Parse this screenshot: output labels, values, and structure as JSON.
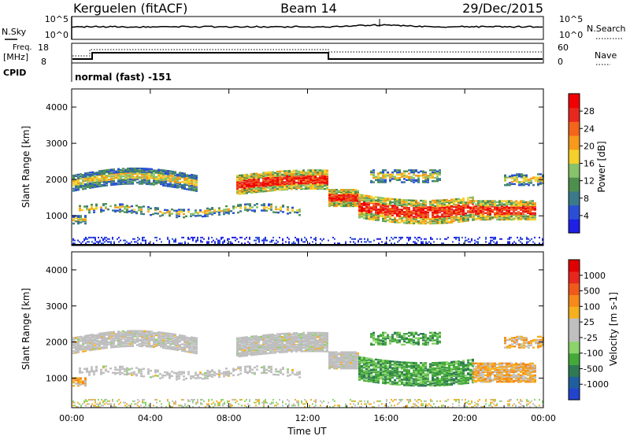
{
  "header": {
    "station": "Kerguelen (fitACF)",
    "beam": "Beam 14",
    "date": "29/Dec/2015"
  },
  "top_panel": {
    "nsky_label": "N.Sky",
    "nsearch_label": "N.Search",
    "left_ticks": [
      "10^5",
      "10^0"
    ],
    "right_ticks": [
      "10^5",
      "10^0"
    ]
  },
  "freq_panel": {
    "freq_label_line1": "Freq.",
    "freq_label_line2": "[MHz]",
    "nave_label": "Nave",
    "left_ticks": [
      "18",
      "8"
    ],
    "right_ticks": [
      "60",
      "0"
    ],
    "cpid_label": "CPID",
    "mode_text": "normal (fast) -151"
  },
  "colors": {
    "power_scale": [
      "#1f1fe6",
      "#2a4fd6",
      "#3a7a8a",
      "#4e8f4e",
      "#88c26a",
      "#f5cf2a",
      "#f59a1a",
      "#f2651a",
      "#e8281e",
      "#f00000"
    ],
    "velocity_scale": [
      "#2244cc",
      "#1f5fa0",
      "#2f7a55",
      "#44a83a",
      "#8ad46a",
      "#bfbfbf",
      "#bfbfbf",
      "#f5b01e",
      "#f58a1a",
      "#ef5a1a",
      "#e8281e",
      "#e00000"
    ]
  },
  "chart_data": [
    {
      "type": "heatmap",
      "title": "",
      "ylabel": "Slant Range [km]",
      "xlabel": "",
      "ylim": [
        180,
        4500
      ],
      "yticks": [
        "1000",
        "2000",
        "3000",
        "4000"
      ],
      "xticks": [
        "00:00",
        "04:00",
        "08:00",
        "12:00",
        "16:00",
        "20:00",
        "00:00"
      ],
      "colorbar_label": "Power [dB]",
      "colorbar_ticks": [
        "4",
        "8",
        "12",
        "16",
        "20",
        "24",
        "28"
      ]
    },
    {
      "type": "heatmap",
      "title": "",
      "ylabel": "Slant Range [km]",
      "xlabel": "Time UT",
      "ylim": [
        180,
        4500
      ],
      "yticks": [
        "1000",
        "2000",
        "3000",
        "4000"
      ],
      "xticks": [
        "00:00",
        "04:00",
        "08:00",
        "12:00",
        "16:00",
        "20:00",
        "00:00"
      ],
      "colorbar_label": "Velocity [m s-1]",
      "colorbar_ticks": [
        "1000",
        "500",
        "100",
        "25",
        "-25",
        "-100",
        "-500",
        "-1000"
      ]
    }
  ]
}
